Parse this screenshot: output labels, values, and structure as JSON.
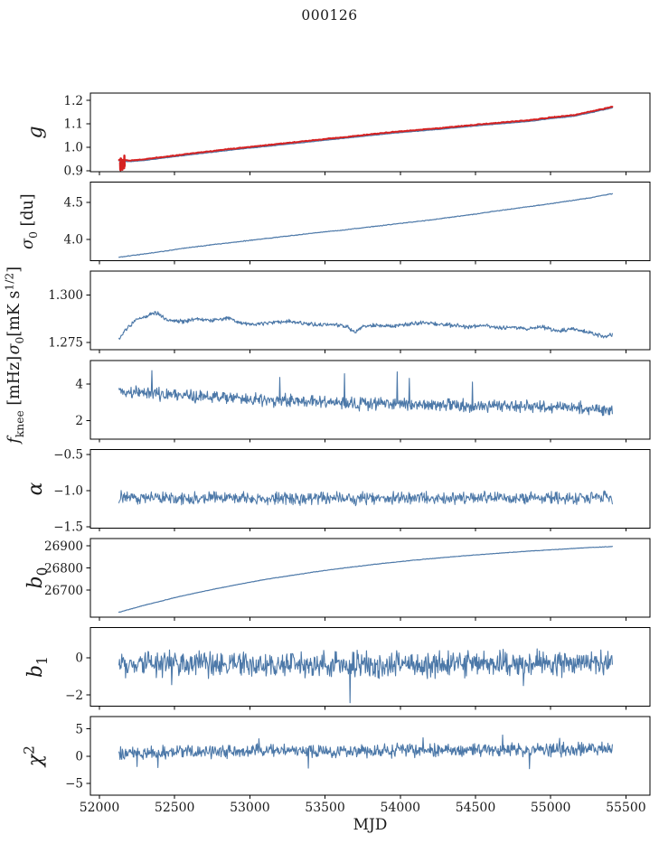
{
  "title": "000126",
  "chart_data": {
    "type": "line",
    "title": "000126",
    "xlabel": "MJD",
    "legend": "none",
    "grid": false,
    "xlim": [
      51940,
      55660
    ],
    "x_data_range": [
      52130,
      55410
    ],
    "x_ticks": [
      {
        "v": 52000,
        "l": "52000"
      },
      {
        "v": 52500,
        "l": "52500"
      },
      {
        "v": 53000,
        "l": "53000"
      },
      {
        "v": 53500,
        "l": "53500"
      },
      {
        "v": 54000,
        "l": "54000"
      },
      {
        "v": 54500,
        "l": "54500"
      },
      {
        "v": 55000,
        "l": "55000"
      },
      {
        "v": 55500,
        "l": "55500"
      }
    ],
    "colors": {
      "line": "#4c78a8",
      "highlight": "#d62222",
      "axis": "#000000",
      "text": "#1a1a1a"
    },
    "panels": [
      {
        "id": "g",
        "ylabel": [
          {
            "t": "g",
            "it": true
          }
        ],
        "ylim": [
          0.896,
          1.231
        ],
        "yticks": [
          {
            "v": 0.9,
            "l": "0.9"
          },
          {
            "v": 1.0,
            "l": "1.0"
          },
          {
            "v": 1.1,
            "l": "1.1"
          },
          {
            "v": 1.2,
            "l": "1.2"
          }
        ],
        "series": [
          {
            "color": "line",
            "w": 1.3,
            "n": 600,
            "noise": 0.0012,
            "seed": 11,
            "anchors": [
              [
                52130,
                0.942
              ],
              [
                52200,
                0.939
              ],
              [
                52300,
                0.944
              ],
              [
                52450,
                0.956
              ],
              [
                52600,
                0.968
              ],
              [
                52750,
                0.979
              ],
              [
                52900,
                0.99
              ],
              [
                53050,
                1.0
              ],
              [
                53200,
                1.01
              ],
              [
                53350,
                1.02
              ],
              [
                53500,
                1.03
              ],
              [
                53650,
                1.04
              ],
              [
                53800,
                1.05
              ],
              [
                53950,
                1.06
              ],
              [
                54100,
                1.068
              ],
              [
                54250,
                1.076
              ],
              [
                54400,
                1.085
              ],
              [
                54550,
                1.094
              ],
              [
                54700,
                1.102
              ],
              [
                54850,
                1.11
              ],
              [
                55000,
                1.122
              ],
              [
                55150,
                1.132
              ],
              [
                55300,
                1.152
              ],
              [
                55410,
                1.168
              ]
            ]
          },
          {
            "color": "highlight",
            "w": 2.0,
            "n": 600,
            "noise": 0.002,
            "seed": 12,
            "offset": 0.005,
            "anchorsFrom": 0
          },
          {
            "color": "highlight",
            "w": 2.4,
            "n": 30,
            "noise": 0.036,
            "seed": 13,
            "x0": 52138,
            "x1": 52168,
            "anchors": [
              [
                52138,
                0.937
              ],
              [
                52168,
                0.937
              ]
            ]
          }
        ]
      },
      {
        "id": "sigma0-du",
        "ylabel": [
          {
            "t": "σ",
            "it": true
          },
          {
            "t": "0",
            "sc": "sub"
          },
          {
            "t": " [du]"
          }
        ],
        "ylim": [
          3.71,
          4.77
        ],
        "yticks": [
          {
            "v": 4.0,
            "l": "4.0"
          },
          {
            "v": 4.5,
            "l": "4.5"
          }
        ],
        "series": [
          {
            "color": "line",
            "w": 1.2,
            "n": 700,
            "noise": 0.006,
            "seed": 21,
            "anchors": [
              [
                52130,
                3.758
              ],
              [
                52250,
                3.79
              ],
              [
                52400,
                3.83
              ],
              [
                52550,
                3.875
              ],
              [
                52700,
                3.915
              ],
              [
                52850,
                3.95
              ],
              [
                53000,
                3.985
              ],
              [
                53150,
                4.02
              ],
              [
                53300,
                4.055
              ],
              [
                53450,
                4.09
              ],
              [
                53600,
                4.12
              ],
              [
                53750,
                4.155
              ],
              [
                53900,
                4.19
              ],
              [
                54050,
                4.225
              ],
              [
                54200,
                4.26
              ],
              [
                54350,
                4.3
              ],
              [
                54500,
                4.34
              ],
              [
                54650,
                4.385
              ],
              [
                54800,
                4.425
              ],
              [
                54950,
                4.465
              ],
              [
                55100,
                4.51
              ],
              [
                55250,
                4.555
              ],
              [
                55410,
                4.615
              ]
            ]
          }
        ]
      },
      {
        "id": "sigma0-mks",
        "ylabel": [
          {
            "t": "σ",
            "it": true
          },
          {
            "t": "0",
            "sc": "sub"
          },
          {
            "t": "[mK s"
          },
          {
            "t": "1/2",
            "sc": "sup"
          },
          {
            "t": "]"
          }
        ],
        "ylim": [
          1.271,
          1.3125
        ],
        "yticks": [
          {
            "v": 1.275,
            "l": "1.275"
          },
          {
            "v": 1.3,
            "l": "1.300"
          }
        ],
        "series": [
          {
            "color": "line",
            "w": 1.1,
            "n": 900,
            "noise": 0.0013,
            "seed": 31,
            "anchors": [
              [
                52130,
                1.2765
              ],
              [
                52180,
                1.282
              ],
              [
                52250,
                1.287
              ],
              [
                52320,
                1.289
              ],
              [
                52370,
                1.291
              ],
              [
                52450,
                1.287
              ],
              [
                52550,
                1.286
              ],
              [
                52650,
                1.2875
              ],
              [
                52750,
                1.2865
              ],
              [
                52850,
                1.288
              ],
              [
                52950,
                1.285
              ],
              [
                53050,
                1.2845
              ],
              [
                53150,
                1.2855
              ],
              [
                53250,
                1.286
              ],
              [
                53350,
                1.285
              ],
              [
                53450,
                1.284
              ],
              [
                53550,
                1.2845
              ],
              [
                53650,
                1.283
              ],
              [
                53700,
                1.28
              ],
              [
                53750,
                1.2835
              ],
              [
                53850,
                1.284
              ],
              [
                53950,
                1.2835
              ],
              [
                54050,
                1.2845
              ],
              [
                54150,
                1.2855
              ],
              [
                54250,
                1.2845
              ],
              [
                54350,
                1.284
              ],
              [
                54450,
                1.283
              ],
              [
                54550,
                1.284
              ],
              [
                54650,
                1.2825
              ],
              [
                54750,
                1.283
              ],
              [
                54850,
                1.282
              ],
              [
                54950,
                1.283
              ],
              [
                55050,
                1.281
              ],
              [
                55150,
                1.282
              ],
              [
                55250,
                1.28
              ],
              [
                55350,
                1.278
              ],
              [
                55410,
                1.279
              ]
            ]
          }
        ]
      },
      {
        "id": "fknee",
        "ylabel": [
          {
            "t": "f",
            "it": true
          },
          {
            "t": "knee",
            "sc": "sub"
          },
          {
            "t": " [mHz]"
          }
        ],
        "ylim": [
          1.0,
          5.28
        ],
        "yticks": [
          {
            "v": 2,
            "l": "2"
          },
          {
            "v": 4,
            "l": "4"
          }
        ],
        "series": [
          {
            "color": "line",
            "w": 1.1,
            "n": 900,
            "noise": 0.42,
            "seed": 41,
            "anchors": [
              [
                52130,
                3.6
              ],
              [
                52250,
                3.55
              ],
              [
                52400,
                3.45
              ],
              [
                52600,
                3.35
              ],
              [
                52800,
                3.25
              ],
              [
                53000,
                3.15
              ],
              [
                53200,
                3.1
              ],
              [
                53400,
                3.02
              ],
              [
                53600,
                2.96
              ],
              [
                53800,
                2.92
              ],
              [
                54000,
                2.9
              ],
              [
                54200,
                2.86
              ],
              [
                54400,
                2.83
              ],
              [
                54600,
                2.8
              ],
              [
                54800,
                2.78
              ],
              [
                55000,
                2.75
              ],
              [
                55200,
                2.68
              ],
              [
                55410,
                2.55
              ]
            ],
            "spikes": [
              [
                52350,
                4.72
              ],
              [
                53200,
                4.35
              ],
              [
                53630,
                4.55
              ],
              [
                53980,
                4.65
              ],
              [
                54060,
                4.3
              ],
              [
                54480,
                4.1
              ]
            ]
          }
        ]
      },
      {
        "id": "alpha",
        "ylabel": [
          {
            "t": "α",
            "it": true
          }
        ],
        "ylim": [
          -1.52,
          -0.43
        ],
        "yticks": [
          {
            "v": -0.5,
            "l": "−0.5"
          },
          {
            "v": -1.0,
            "l": "−1.0"
          },
          {
            "v": -1.5,
            "l": "−1.5"
          }
        ],
        "series": [
          {
            "color": "line",
            "w": 1.0,
            "n": 900,
            "noise": 0.105,
            "seed": 51,
            "anchors": [
              [
                52130,
                -1.09
              ],
              [
                52800,
                -1.105
              ],
              [
                53500,
                -1.11
              ],
              [
                54200,
                -1.105
              ],
              [
                55410,
                -1.1
              ]
            ]
          }
        ]
      },
      {
        "id": "b0",
        "ylabel": [
          {
            "t": "b",
            "it": true
          },
          {
            "t": "0",
            "sc": "sub"
          }
        ],
        "ylim": [
          26578,
          26933
        ],
        "yticks": [
          {
            "v": 26700,
            "l": "26700"
          },
          {
            "v": 26800,
            "l": "26800"
          },
          {
            "v": 26900,
            "l": "26900"
          }
        ],
        "series": [
          {
            "color": "line",
            "w": 1.2,
            "n": 600,
            "noise": 1.2,
            "seed": 61,
            "anchors": [
              [
                52130,
                26600
              ],
              [
                52300,
                26632
              ],
              [
                52500,
                26666
              ],
              [
                52700,
                26696
              ],
              [
                52900,
                26723
              ],
              [
                53100,
                26748
              ],
              [
                53300,
                26769
              ],
              [
                53500,
                26789
              ],
              [
                53700,
                26806
              ],
              [
                53900,
                26822
              ],
              [
                54100,
                26836
              ],
              [
                54300,
                26848
              ],
              [
                54500,
                26859
              ],
              [
                54700,
                26869
              ],
              [
                54900,
                26878
              ],
              [
                55100,
                26886
              ],
              [
                55250,
                26892
              ],
              [
                55410,
                26897
              ]
            ]
          }
        ]
      },
      {
        "id": "b1",
        "ylabel": [
          {
            "t": "b",
            "it": true
          },
          {
            "t": "1",
            "sc": "sub"
          }
        ],
        "ylim": [
          -2.61,
          1.63
        ],
        "yticks": [
          {
            "v": 0,
            "l": "0"
          },
          {
            "v": -2,
            "l": "−2"
          }
        ],
        "series": [
          {
            "color": "line",
            "w": 1.1,
            "n": 900,
            "noise": 0.82,
            "seed": 71,
            "anchors": [
              [
                52130,
                -0.32
              ],
              [
                53000,
                -0.36
              ],
              [
                54000,
                -0.32
              ],
              [
                55410,
                -0.28
              ]
            ],
            "spikes": [
              [
                53667,
                -2.42
              ],
              [
                52480,
                -1.45
              ],
              [
                54820,
                -1.5
              ]
            ]
          }
        ]
      },
      {
        "id": "chi2",
        "ylabel": [
          {
            "t": "χ",
            "it": true
          },
          {
            "t": "2",
            "sc": "sup"
          }
        ],
        "ylim": [
          -7.2,
          7.25
        ],
        "yticks": [
          {
            "v": 5,
            "l": "5"
          },
          {
            "v": 0,
            "l": "0"
          },
          {
            "v": -5,
            "l": "−5"
          }
        ],
        "series": [
          {
            "color": "line",
            "w": 1.1,
            "n": 900,
            "noise": 1.45,
            "seed": 81,
            "anchors": [
              [
                52130,
                0.55
              ],
              [
                52600,
                0.8
              ],
              [
                53200,
                1.0
              ],
              [
                53800,
                0.95
              ],
              [
                54400,
                1.1
              ],
              [
                55000,
                1.2
              ],
              [
                55410,
                1.35
              ]
            ],
            "spikes": [
              [
                52250,
                -1.9
              ],
              [
                52390,
                -2.1
              ],
              [
                53060,
                3.2
              ],
              [
                53390,
                -2.2
              ],
              [
                54150,
                3.4
              ],
              [
                54680,
                3.9
              ],
              [
                54860,
                -2.3
              ],
              [
                55060,
                3.3
              ]
            ]
          }
        ]
      }
    ]
  }
}
